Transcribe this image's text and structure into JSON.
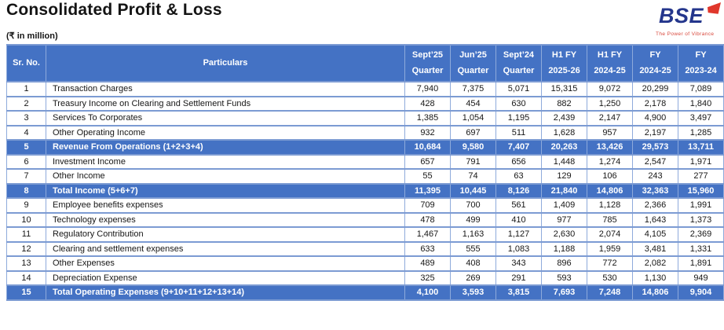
{
  "title": "Consolidated Profit & Loss",
  "subtitle": "(₹ in million)",
  "logo": {
    "text": "BSE",
    "tagline": "The Power of Vibrance"
  },
  "colors": {
    "header_bg": "#4472c4",
    "highlight_bg": "#4472c4",
    "border": "#8eaadb",
    "logo_blue": "#24368c",
    "logo_red": "#e0372b"
  },
  "table": {
    "columns": [
      {
        "id": "sr",
        "label": "Sr. No."
      },
      {
        "id": "particulars",
        "label": "Particulars"
      },
      {
        "id": "sept25-quarter",
        "label_top": "Sept’25",
        "label_bottom": "Quarter"
      },
      {
        "id": "jun25-quarter",
        "label_top": "Jun’25",
        "label_bottom": "Quarter"
      },
      {
        "id": "sept24-quarter",
        "label_top": "Sept’24",
        "label_bottom": "Quarter"
      },
      {
        "id": "h1-fy-2025-26",
        "label_top": "H1 FY",
        "label_bottom": "2025-26"
      },
      {
        "id": "h1-fy-2024-25",
        "label_top": "H1 FY",
        "label_bottom": "2024-25"
      },
      {
        "id": "fy-2024-25",
        "label_top": "FY",
        "label_bottom": "2024-25"
      },
      {
        "id": "fy-2023-24",
        "label_top": "FY",
        "label_bottom": "2023-24"
      }
    ],
    "rows": [
      {
        "sr": "1",
        "particulars": "Transaction Charges",
        "highlight": false,
        "values": [
          "7,940",
          "7,375",
          "5,071",
          "15,315",
          "9,072",
          "20,299",
          "7,089"
        ]
      },
      {
        "sr": "2",
        "particulars": "Treasury Income on Clearing and Settlement Funds",
        "highlight": false,
        "values": [
          "428",
          "454",
          "630",
          "882",
          "1,250",
          "2,178",
          "1,840"
        ]
      },
      {
        "sr": "3",
        "particulars": "Services To Corporates",
        "highlight": false,
        "values": [
          "1,385",
          "1,054",
          "1,195",
          "2,439",
          "2,147",
          "4,900",
          "3,497"
        ]
      },
      {
        "sr": "4",
        "particulars": "Other Operating Income",
        "highlight": false,
        "values": [
          "932",
          "697",
          "511",
          "1,628",
          "957",
          "2,197",
          "1,285"
        ]
      },
      {
        "sr": "5",
        "particulars": "Revenue From Operations (1+2+3+4)",
        "highlight": true,
        "values": [
          "10,684",
          "9,580",
          "7,407",
          "20,263",
          "13,426",
          "29,573",
          "13,711"
        ]
      },
      {
        "sr": "6",
        "particulars": "Investment Income",
        "highlight": false,
        "values": [
          "657",
          "791",
          "656",
          "1,448",
          "1,274",
          "2,547",
          "1,971"
        ]
      },
      {
        "sr": "7",
        "particulars": "Other Income",
        "highlight": false,
        "values": [
          "55",
          "74",
          "63",
          "129",
          "106",
          "243",
          "277"
        ]
      },
      {
        "sr": "8",
        "particulars": "Total Income (5+6+7)",
        "highlight": true,
        "values": [
          "11,395",
          "10,445",
          "8,126",
          "21,840",
          "14,806",
          "32,363",
          "15,960"
        ]
      },
      {
        "sr": "9",
        "particulars": "Employee benefits expenses",
        "highlight": false,
        "values": [
          "709",
          "700",
          "561",
          "1,409",
          "1,128",
          "2,366",
          "1,991"
        ]
      },
      {
        "sr": "10",
        "particulars": "Technology expenses",
        "highlight": false,
        "values": [
          "478",
          "499",
          "410",
          "977",
          "785",
          "1,643",
          "1,373"
        ]
      },
      {
        "sr": "11",
        "particulars": "Regulatory Contribution",
        "highlight": false,
        "values": [
          "1,467",
          "1,163",
          "1,127",
          "2,630",
          "2,074",
          "4,105",
          "2,369"
        ]
      },
      {
        "sr": "12",
        "particulars": "Clearing and settlement expenses",
        "highlight": false,
        "values": [
          "633",
          "555",
          "1,083",
          "1,188",
          "1,959",
          "3,481",
          "1,331"
        ]
      },
      {
        "sr": "13",
        "particulars": "Other Expenses",
        "highlight": false,
        "values": [
          "489",
          "408",
          "343",
          "896",
          "772",
          "2,082",
          "1,891"
        ]
      },
      {
        "sr": "14",
        "particulars": "Depreciation Expense",
        "highlight": false,
        "values": [
          "325",
          "269",
          "291",
          "593",
          "530",
          "1,130",
          "949"
        ]
      },
      {
        "sr": "15",
        "particulars": "Total Operating Expenses (9+10+11+12+13+14)",
        "highlight": true,
        "values": [
          "4,100",
          "3,593",
          "3,815",
          "7,693",
          "7,248",
          "14,806",
          "9,904"
        ]
      }
    ]
  }
}
